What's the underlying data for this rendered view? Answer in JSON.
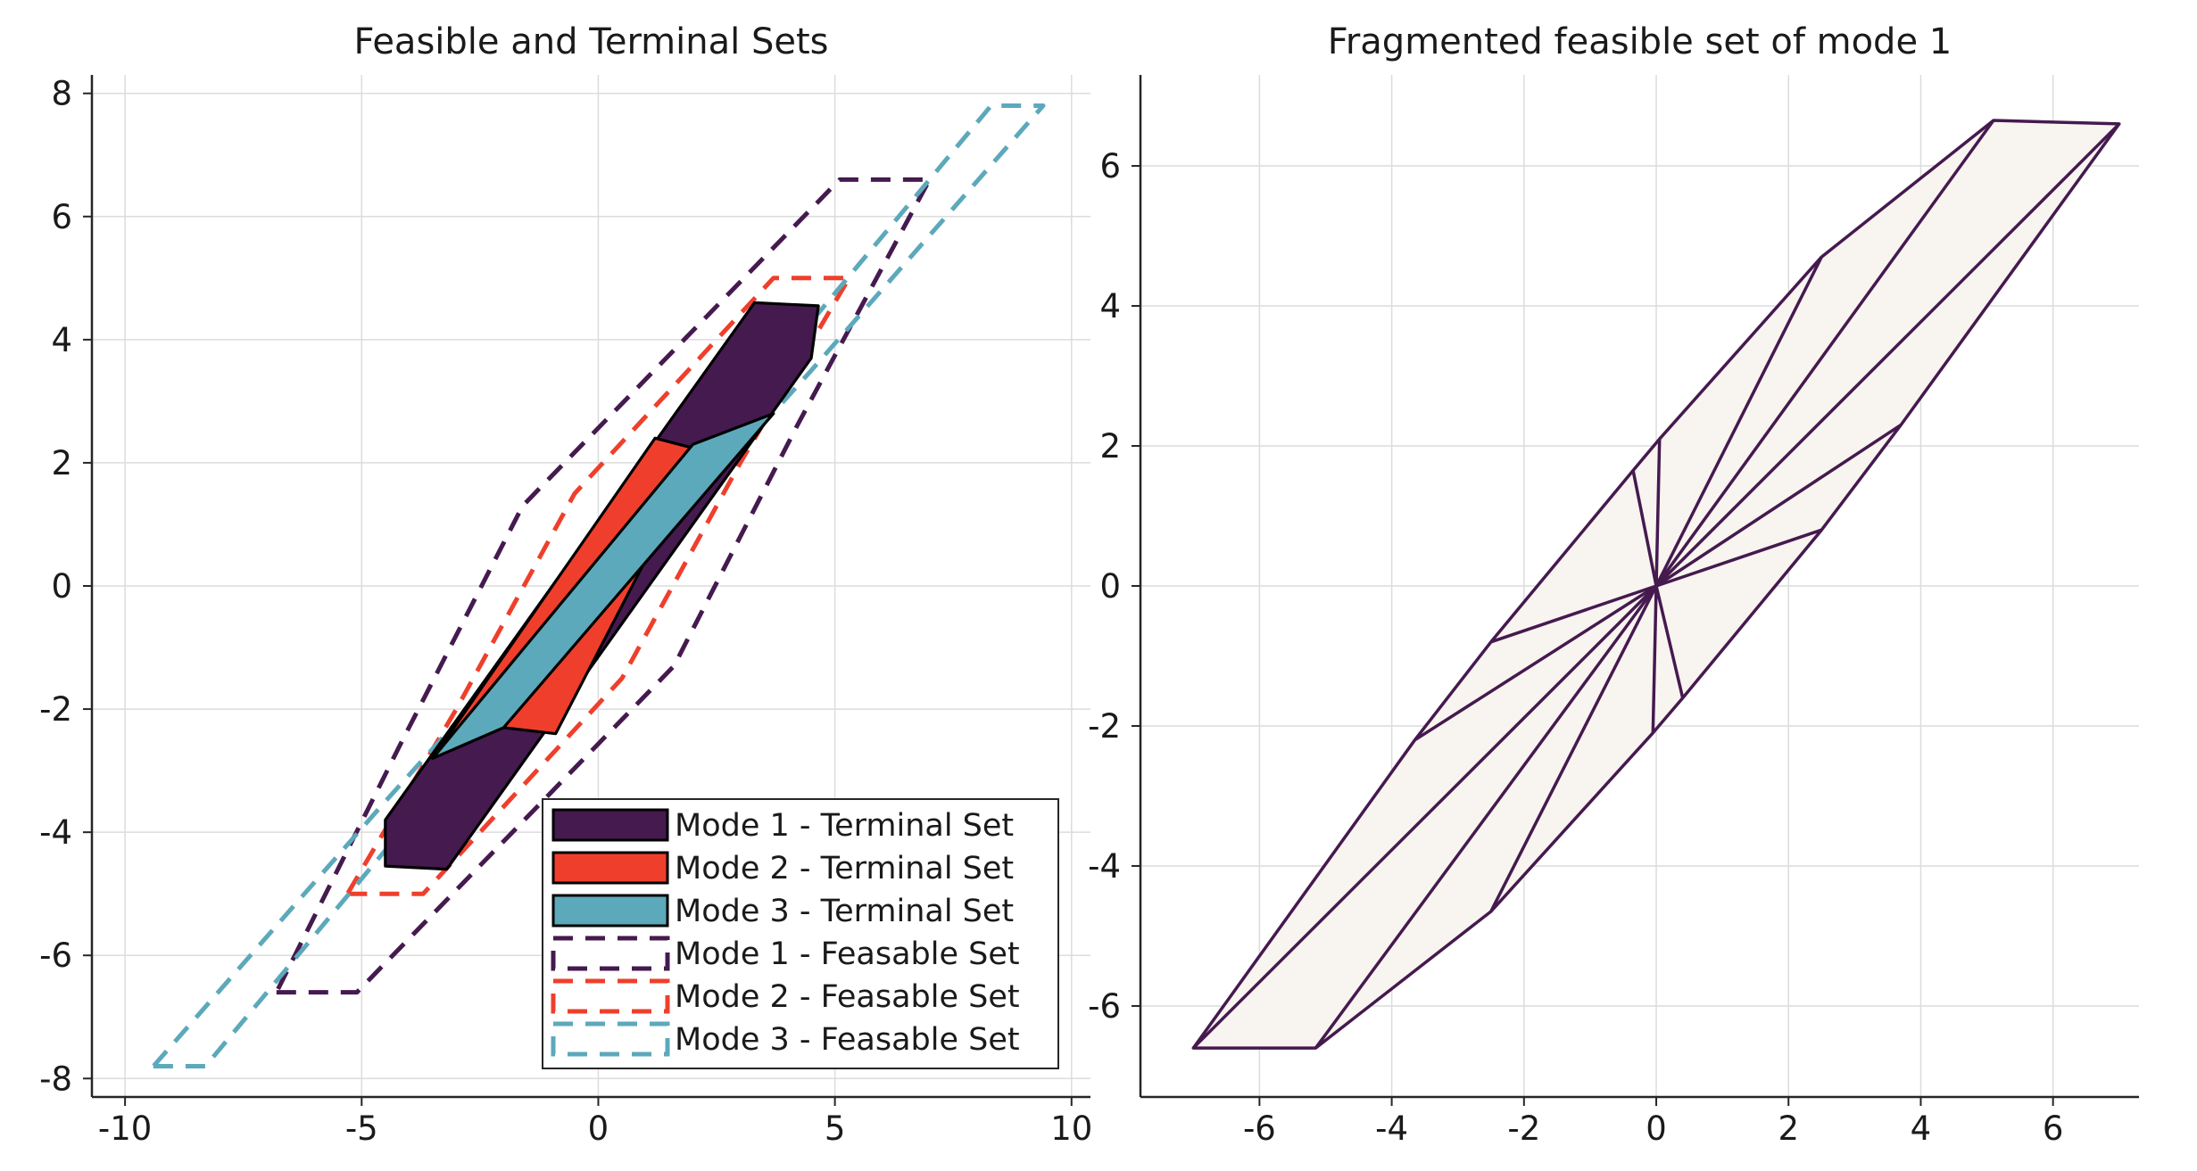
{
  "colors": {
    "mode1": "#451a4f",
    "mode2": "#ef3f2c",
    "mode3": "#5ca9bb",
    "fragment_fill": "#f8f4ef",
    "fragment_edge": "#451a4f",
    "grid": "#dcdcdc",
    "axis": "#262626"
  },
  "chart_data": [
    {
      "type": "polygon",
      "title": "Feasible and Terminal Sets",
      "xlim": [
        -10.7,
        10.4
      ],
      "ylim": [
        -8.3,
        8.3
      ],
      "xticks": [
        -10,
        -5,
        0,
        5,
        10
      ],
      "yticks": [
        -8,
        -6,
        -4,
        -2,
        0,
        2,
        4,
        6,
        8
      ],
      "xtick_labels": [
        "-10",
        "-5",
        "0",
        "5",
        "10"
      ],
      "ytick_labels": [
        "-8",
        "-6",
        "-4",
        "-2",
        "0",
        "2",
        "4",
        "6",
        "8"
      ],
      "grid": true,
      "legend_placement": "bottom-right",
      "series": [
        {
          "name": "Mode 1 - Feasable Set",
          "style": "dashed",
          "color_key": "mode1",
          "points": [
            [
              -6.8,
              -6.6
            ],
            [
              -5.1,
              -6.6
            ],
            [
              1.6,
              -1.3
            ],
            [
              4.2,
              2.6
            ],
            [
              7.0,
              6.6
            ],
            [
              5.1,
              6.6
            ],
            [
              -1.6,
              1.3
            ],
            [
              -4.2,
              -2.6
            ]
          ]
        },
        {
          "name": "Mode 2 - Feasable Set",
          "style": "dashed",
          "color_key": "mode2",
          "points": [
            [
              -5.3,
              -5.0
            ],
            [
              -3.7,
              -5.0
            ],
            [
              0.5,
              -1.5
            ],
            [
              3.0,
              2.0
            ],
            [
              5.3,
              5.0
            ],
            [
              3.7,
              5.0
            ],
            [
              -0.5,
              1.5
            ],
            [
              -3.0,
              -2.0
            ]
          ]
        },
        {
          "name": "Mode 3 - Feasable Set",
          "style": "dashed",
          "color_key": "mode3",
          "points": [
            [
              -9.4,
              -7.8
            ],
            [
              -8.3,
              -7.8
            ],
            [
              -3.1,
              -3.0
            ],
            [
              4.5,
              3.5
            ],
            [
              9.4,
              7.8
            ],
            [
              8.3,
              7.8
            ],
            [
              3.1,
              3.0
            ],
            [
              -4.5,
              -3.5
            ]
          ]
        },
        {
          "name": "Mode 1 - Terminal Set",
          "style": "filled",
          "color_key": "mode1",
          "points": [
            [
              -4.5,
              -4.55
            ],
            [
              -3.2,
              -4.6
            ],
            [
              4.5,
              3.7
            ],
            [
              4.65,
              4.55
            ],
            [
              3.3,
              4.6
            ],
            [
              -4.5,
              -3.8
            ]
          ]
        },
        {
          "name": "Mode 2 - Terminal Set",
          "style": "filled",
          "color_key": "mode2",
          "points": [
            [
              -3.5,
              -2.8
            ],
            [
              1.2,
              2.4
            ],
            [
              2.2,
              2.2
            ],
            [
              -0.9,
              -2.4
            ],
            [
              -2.0,
              -2.3
            ]
          ]
        },
        {
          "name": "Mode 3 - Terminal Set",
          "style": "filled",
          "color_key": "mode3",
          "points": [
            [
              -3.5,
              -2.8
            ],
            [
              2.0,
              2.3
            ],
            [
              3.7,
              2.8
            ],
            [
              -2.0,
              -2.3
            ]
          ]
        }
      ],
      "legend_order": [
        "Mode 1 - Terminal Set",
        "Mode 2 - Terminal Set",
        "Mode 3 - Terminal Set",
        "Mode 1 - Feasable Set",
        "Mode 2 - Feasable Set",
        "Mode 3 - Feasable Set"
      ]
    },
    {
      "type": "polygon",
      "title": "Fragmented feasible set of mode 1",
      "xlim": [
        -7.8,
        7.3
      ],
      "ylim": [
        -7.3,
        7.3
      ],
      "xticks": [
        -6,
        -4,
        -2,
        0,
        2,
        4,
        6
      ],
      "yticks": [
        -6,
        -4,
        -2,
        0,
        2,
        4,
        6
      ],
      "xtick_labels": [
        "-6",
        "-4",
        "-2",
        "0",
        "2",
        "4",
        "6"
      ],
      "ytick_labels": [
        "-6",
        "-4",
        "-2",
        "0",
        "2",
        "4",
        "6"
      ],
      "grid": true,
      "outline": [
        [
          -7.0,
          -6.6
        ],
        [
          -5.15,
          -6.6
        ],
        [
          -2.5,
          -4.65
        ],
        [
          -0.05,
          -2.1
        ],
        [
          0.4,
          -1.6
        ],
        [
          2.5,
          0.8
        ],
        [
          3.7,
          2.3
        ],
        [
          7.0,
          6.6
        ],
        [
          5.1,
          6.65
        ],
        [
          2.5,
          4.7
        ],
        [
          0.05,
          2.1
        ],
        [
          -0.35,
          1.65
        ],
        [
          -2.5,
          -0.8
        ],
        [
          -3.65,
          -2.2
        ]
      ],
      "fan_center": [
        0,
        0
      ]
    }
  ]
}
